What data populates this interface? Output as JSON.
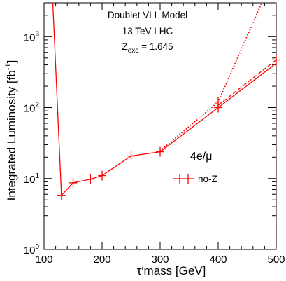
{
  "chart_data": {
    "type": "line",
    "xlabel": "τ′mass  [GeV]",
    "ylabel_main": "Integrated Luminosity [fb",
    "ylabel_sup": "-1",
    "ylabel_end": "]",
    "xlim": [
      100,
      500
    ],
    "ylim": [
      1,
      3000
    ],
    "yscale": "log",
    "xticks": [
      100,
      200,
      300,
      400,
      500
    ],
    "yticks": [
      {
        "value": 1,
        "base": "10",
        "exp": "0"
      },
      {
        "value": 10,
        "base": "10",
        "exp": "1"
      },
      {
        "value": 100,
        "base": "10",
        "exp": "2"
      },
      {
        "value": 1000,
        "base": "10",
        "exp": "3"
      }
    ],
    "annotations": {
      "model": "Doublet VLL Model",
      "lhc": "13 TeV LHC",
      "zexc_prefix": "Z",
      "zexc_sub": "exc",
      "zexc_value": " = 1.645",
      "channel": "4e/μ"
    },
    "color": "#ff0000",
    "series": [
      {
        "name": "no-Z",
        "style": "solid",
        "markers": true,
        "x": [
          130,
          150,
          180,
          200,
          250,
          300,
          400
        ],
        "y": [
          5.8,
          8.7,
          9.8,
          11.0,
          20.8,
          23.8,
          100
        ],
        "x_error_half": 10
      },
      {
        "style": "solid",
        "markers": false,
        "x": [
          115,
          130
        ],
        "y": [
          3000,
          5.8
        ]
      },
      {
        "style": "solid",
        "markers": false,
        "x": [
          400,
          500
        ],
        "y": [
          100,
          420
        ]
      },
      {
        "style": "dashed",
        "markers": false,
        "x": [
          400,
          500
        ],
        "y": [
          108,
          470
        ]
      },
      {
        "style": "dotted",
        "markers": false,
        "x": [
          300,
          400,
          475
        ],
        "y": [
          24.5,
          120,
          3000
        ]
      },
      {
        "style": "solid",
        "markers": false,
        "x": [
          400,
          500
        ],
        "y": [
          120,
          470
        ],
        "endmarker_only": true
      }
    ]
  }
}
